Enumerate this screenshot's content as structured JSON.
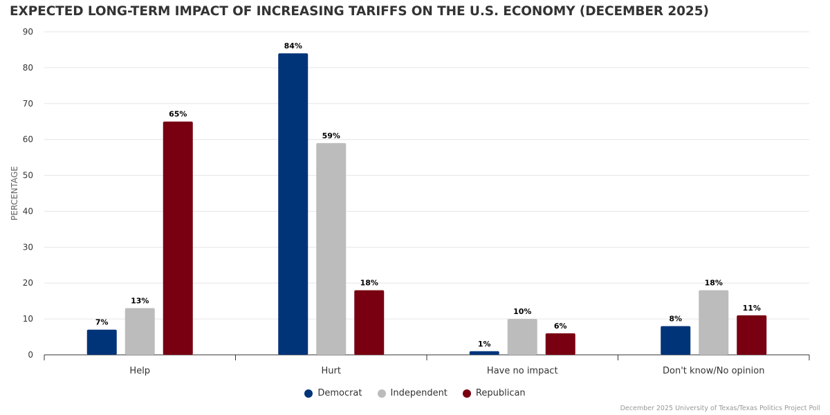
{
  "chart_data": {
    "type": "bar",
    "title": "EXPECTED LONG-TERM IMPACT OF INCREASING TARIFFS ON THE U.S. ECONOMY (DECEMBER 2025)",
    "xlabel": "",
    "ylabel": "PERCENTAGE",
    "ylim": [
      0,
      90
    ],
    "yticks": [
      0,
      10,
      20,
      30,
      40,
      50,
      60,
      70,
      80,
      90
    ],
    "grid": true,
    "categories": [
      "Help",
      "Hurt",
      "Have no impact",
      "Don't know/No opinion"
    ],
    "series": [
      {
        "name": "Democrat",
        "color": "#003479",
        "values": [
          7,
          84,
          1,
          8
        ],
        "labels": [
          "7%",
          "84%",
          "1%",
          "8%"
        ]
      },
      {
        "name": "Independent",
        "color": "#bcbcbc",
        "values": [
          13,
          59,
          10,
          18
        ],
        "labels": [
          "13%",
          "59%",
          "10%",
          "18%"
        ]
      },
      {
        "name": "Republican",
        "color": "#780011",
        "values": [
          65,
          18,
          6,
          11
        ],
        "labels": [
          "65%",
          "18%",
          "6%",
          "11%"
        ]
      }
    ],
    "legend_position": "bottom-center",
    "source": "December 2025 University of Texas/Texas Politics Project Poll"
  }
}
